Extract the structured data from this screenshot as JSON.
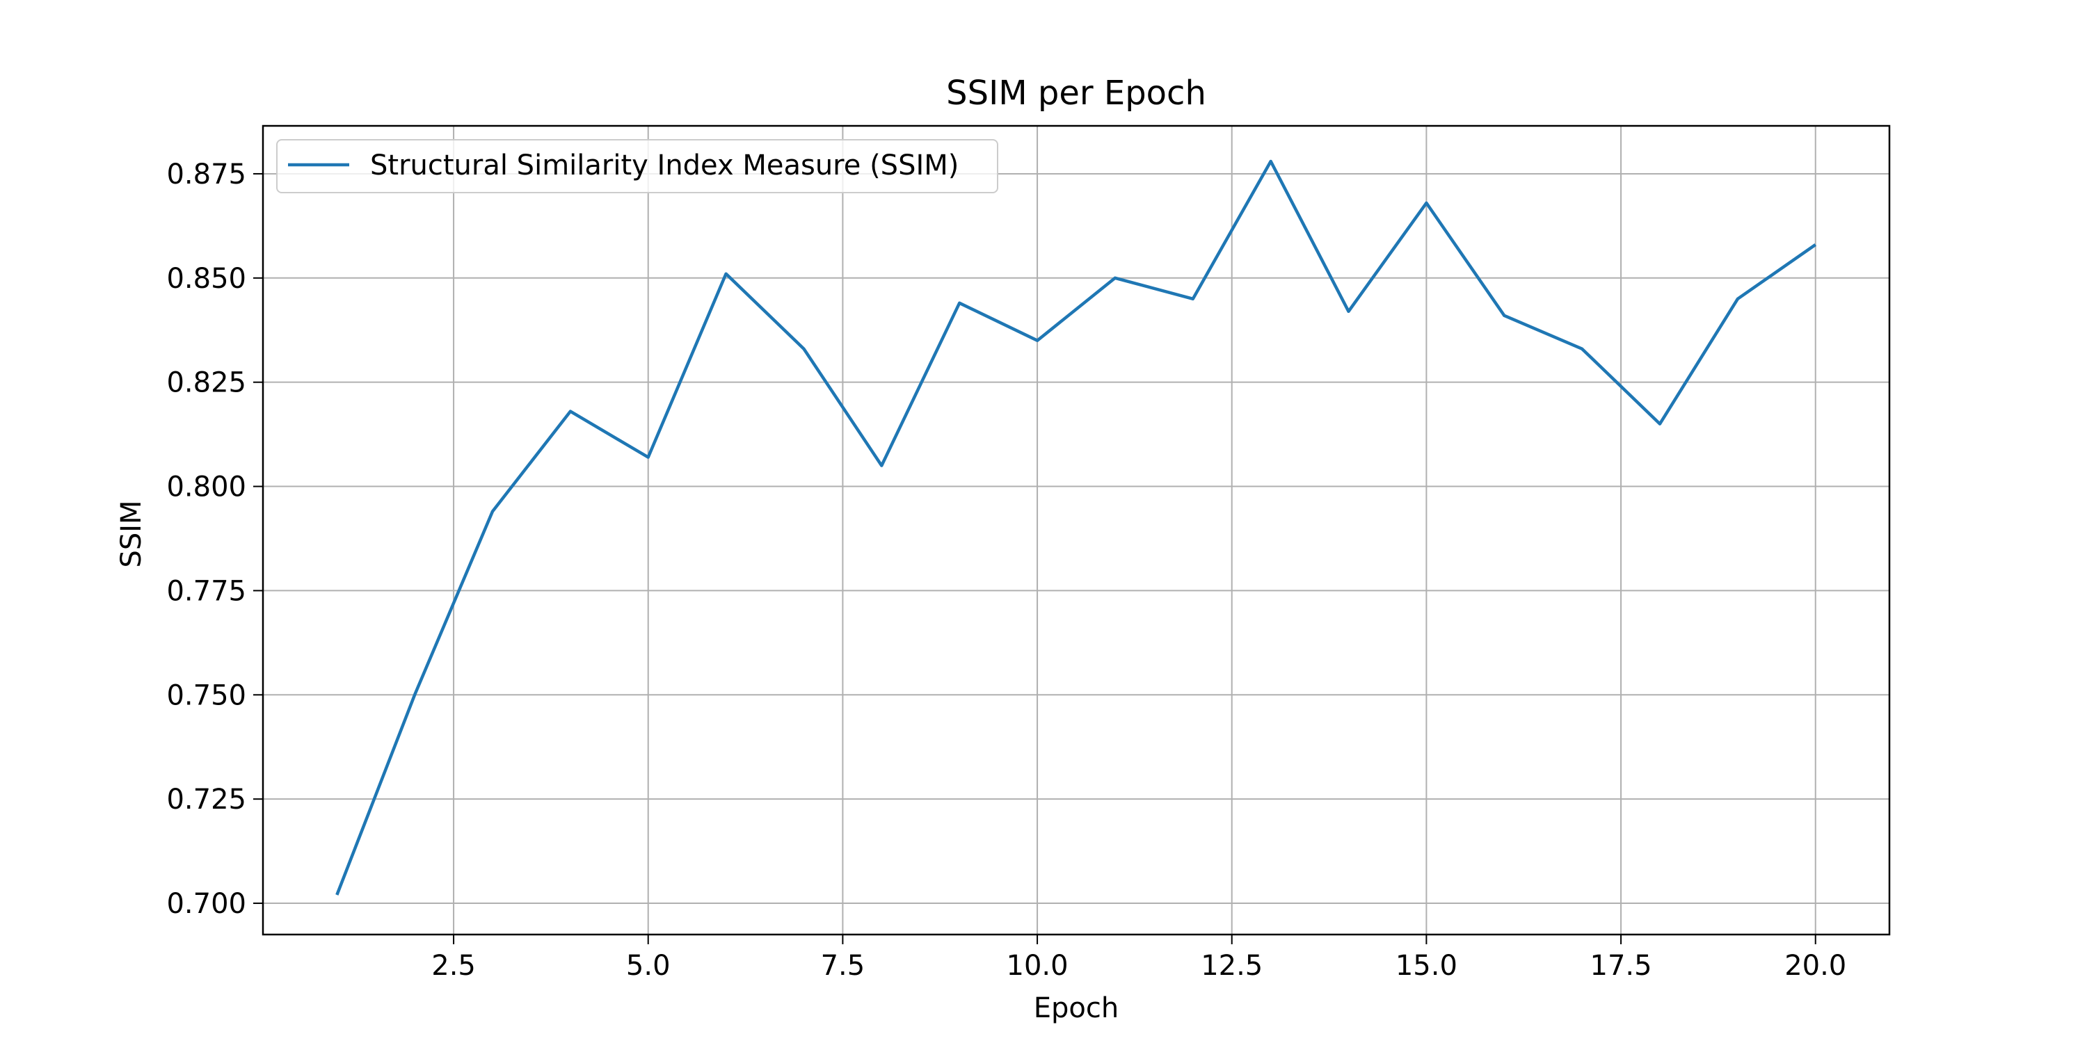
{
  "chart_data": {
    "type": "line",
    "title": "SSIM per Epoch",
    "xlabel": "Epoch",
    "ylabel": "SSIM",
    "x": [
      1,
      2,
      3,
      4,
      5,
      6,
      7,
      8,
      9,
      10,
      11,
      12,
      13,
      14,
      15,
      16,
      17,
      18,
      19,
      20
    ],
    "series": [
      {
        "name": "Structural Similarity Index Measure (SSIM)",
        "color": "#1f77b4",
        "values": [
          0.702,
          0.75,
          0.794,
          0.818,
          0.807,
          0.851,
          0.833,
          0.805,
          0.844,
          0.835,
          0.85,
          0.845,
          0.878,
          0.842,
          0.868,
          0.841,
          0.833,
          0.815,
          0.845,
          0.858
        ]
      }
    ],
    "xlim": [
      0.05,
      20.95
    ],
    "ylim": [
      0.6925,
      0.8865
    ],
    "xticks": [
      2.5,
      5.0,
      7.5,
      10.0,
      12.5,
      15.0,
      17.5,
      20.0
    ],
    "xtick_labels": [
      "2.5",
      "5.0",
      "7.5",
      "10.0",
      "12.5",
      "15.0",
      "17.5",
      "20.0"
    ],
    "yticks": [
      0.7,
      0.725,
      0.75,
      0.775,
      0.8,
      0.825,
      0.85,
      0.875
    ],
    "ytick_labels": [
      "0.700",
      "0.725",
      "0.750",
      "0.775",
      "0.800",
      "0.825",
      "0.850",
      "0.875"
    ],
    "grid": true,
    "legend_position": "upper-left"
  }
}
